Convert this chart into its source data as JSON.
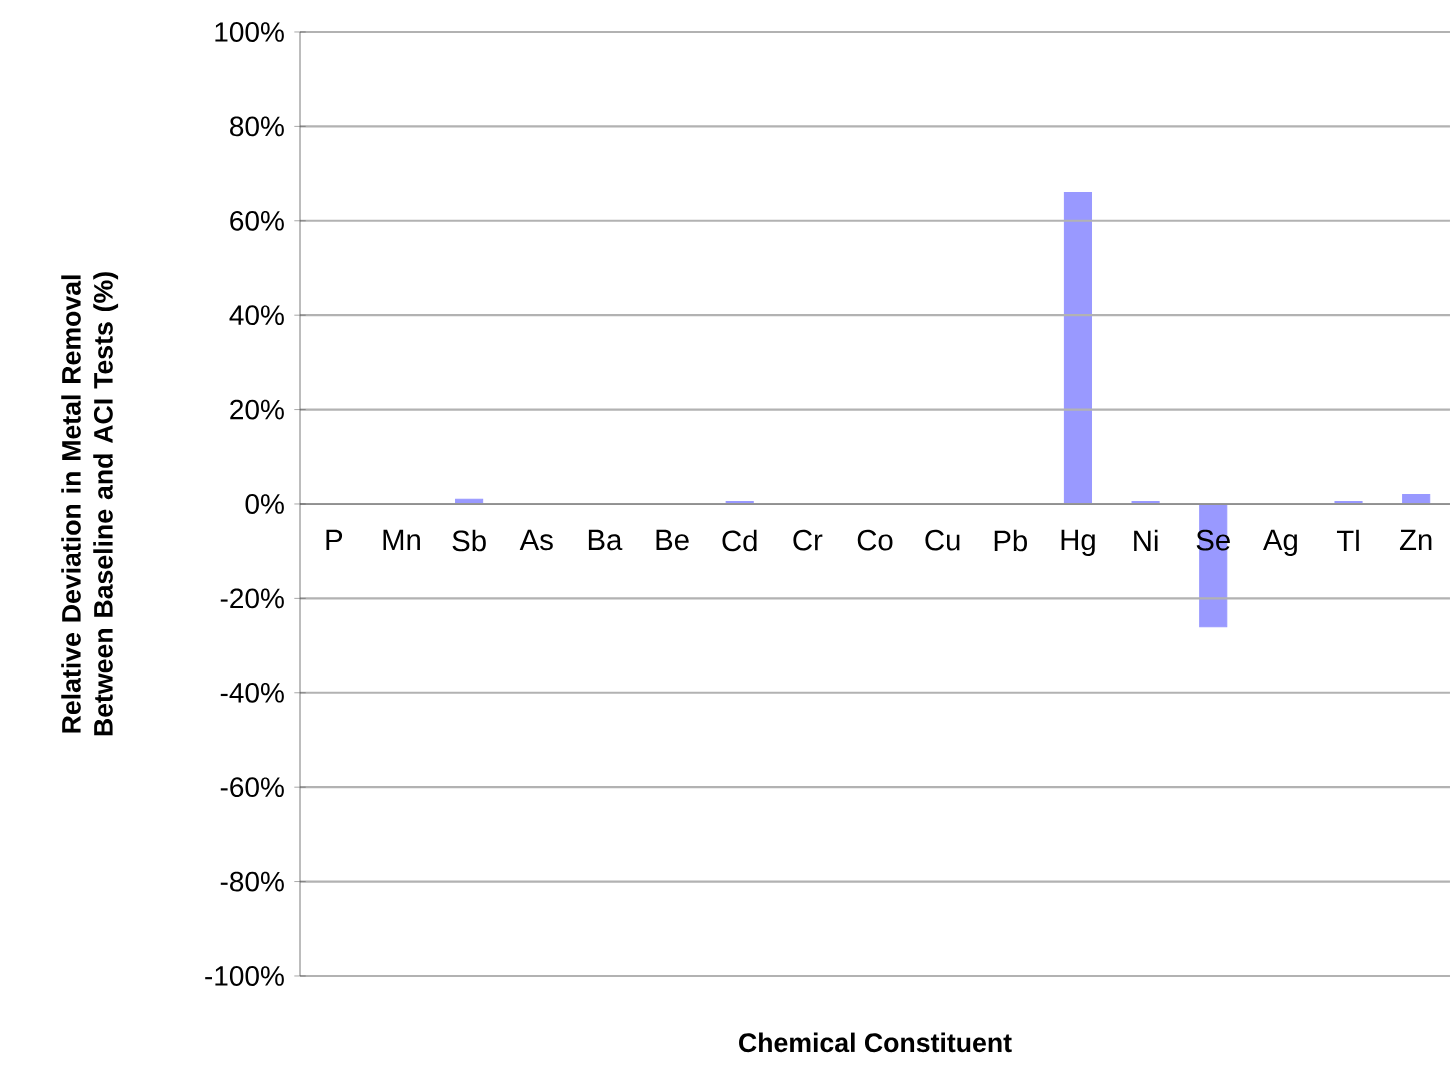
{
  "chart_data": {
    "type": "bar",
    "xlabel": "Chemical Constituent",
    "ylabel": "Relative Deviation in Metal Removal Between Baseline and ACI Tests (%)",
    "categories": [
      "P",
      "Mn",
      "Sb",
      "As",
      "Ba",
      "Be",
      "Cd",
      "Cr",
      "Co",
      "Cu",
      "Pb",
      "Hg",
      "Ni",
      "Se",
      "Ag",
      "Tl",
      "Zn"
    ],
    "values": [
      0,
      0,
      1,
      0,
      0,
      0,
      0.5,
      0,
      0,
      0,
      0,
      66,
      0.5,
      -26,
      0,
      0.5,
      2
    ],
    "color": "#9999ff",
    "ylim": [
      -100,
      100
    ],
    "yticks": [
      {
        "value": 100,
        "label": "100%"
      },
      {
        "value": 80,
        "label": "80%"
      },
      {
        "value": 60,
        "label": "60%"
      },
      {
        "value": 40,
        "label": "40%"
      },
      {
        "value": 20,
        "label": "20%"
      },
      {
        "value": 0,
        "label": "0%"
      },
      {
        "value": -20,
        "label": "-20%"
      },
      {
        "value": -40,
        "label": "-40%"
      },
      {
        "value": -60,
        "label": "-60%"
      },
      {
        "value": -80,
        "label": "-80%"
      },
      {
        "value": -100,
        "label": "-100%"
      }
    ],
    "grid": "y"
  }
}
